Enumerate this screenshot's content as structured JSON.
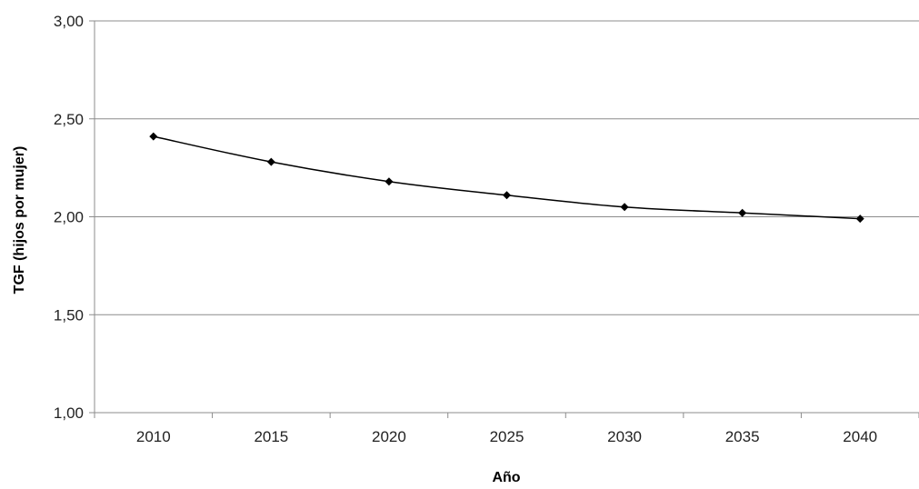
{
  "chart_data": {
    "type": "line",
    "title": "",
    "xlabel": "Año",
    "ylabel": "TGF (hijos por mujer)",
    "categories": [
      "2010",
      "2015",
      "2020",
      "2025",
      "2030",
      "2035",
      "2040"
    ],
    "series": [
      {
        "values": [
          2.41,
          2.28,
          2.18,
          2.11,
          2.05,
          2.02,
          1.99
        ]
      }
    ],
    "ylim": [
      1.0,
      3.0
    ],
    "y_ticks": [
      "1,00",
      "1,50",
      "2,00",
      "2,50",
      "3,00"
    ],
    "grid": "horizontal",
    "legend": "none",
    "colors": {
      "line": "#000000",
      "grid": "#8c8c8c",
      "axis": "#8c8c8c"
    },
    "marker": "diamond"
  }
}
